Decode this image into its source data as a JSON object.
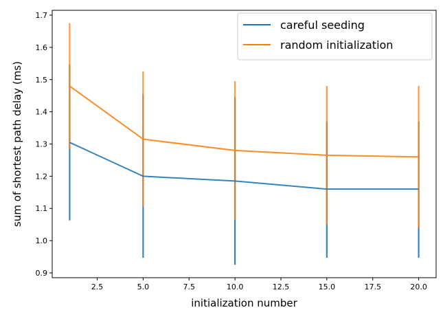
{
  "chart_data": {
    "type": "line",
    "title": "",
    "xlabel": "initialization number",
    "ylabel": "sum of shortest path delay (ms)",
    "xlim": [
      0.05,
      20.95
    ],
    "ylim": [
      0.885,
      1.715
    ],
    "x": [
      1,
      5,
      10,
      15,
      20
    ],
    "xticks": [
      2.5,
      5.0,
      7.5,
      10.0,
      12.5,
      15.0,
      17.5,
      20.0
    ],
    "xtick_labels": [
      "2.5",
      "5.0",
      "7.5",
      "10.0",
      "12.5",
      "15.0",
      "17.5",
      "20.0"
    ],
    "yticks": [
      0.9,
      1.0,
      1.1,
      1.2,
      1.3,
      1.4,
      1.5,
      1.6,
      1.7
    ],
    "ytick_labels": [
      "0.9",
      "1.0",
      "1.1",
      "1.2",
      "1.3",
      "1.4",
      "1.5",
      "1.6",
      "1.7"
    ],
    "grid": false,
    "legend_position": "top-right",
    "series": [
      {
        "name": "careful seeding",
        "color": "#1f77b4",
        "values": [
          1.305,
          1.2,
          1.185,
          1.16,
          1.16
        ],
        "err_low": [
          1.063,
          0.947,
          0.925,
          0.947,
          0.947
        ],
        "err_high": [
          1.547,
          1.455,
          1.445,
          1.37,
          1.37
        ]
      },
      {
        "name": "random initialization",
        "color": "#ff7f0e",
        "values": [
          1.48,
          1.315,
          1.28,
          1.265,
          1.26
        ],
        "err_low": [
          1.285,
          1.105,
          1.065,
          1.05,
          1.04
        ],
        "err_high": [
          1.675,
          1.525,
          1.495,
          1.48,
          1.48
        ]
      }
    ]
  }
}
